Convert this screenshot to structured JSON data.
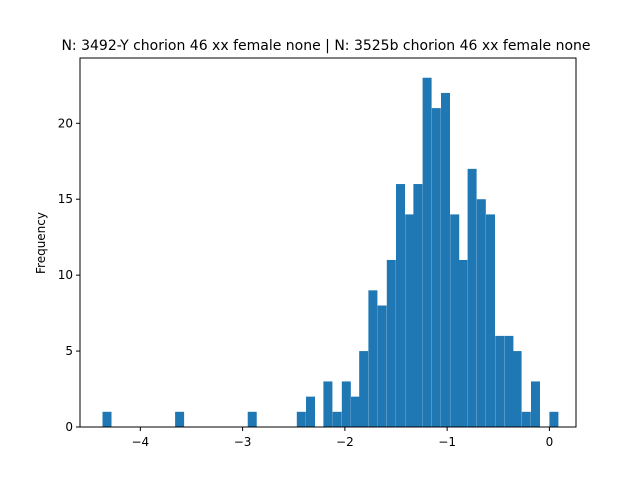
{
  "chart_data": {
    "type": "bar",
    "title": "N: 3492-Y chorion 46 xx female none | N: 3525b chorion 46 xx female none",
    "xlabel": "",
    "ylabel": "Frequency",
    "xlim": [
      -4.59,
      0.26
    ],
    "ylim": [
      0,
      24.3
    ],
    "x_ticks": [
      -4,
      -3,
      -2,
      -1,
      0
    ],
    "x_tick_labels": [
      "−4",
      "−3",
      "−2",
      "−1",
      "0"
    ],
    "y_ticks": [
      0,
      5,
      10,
      15,
      20
    ],
    "y_tick_labels": [
      "0",
      "5",
      "10",
      "15",
      "20"
    ],
    "grid": false,
    "bar_color": "#1f77b4",
    "bin_width": 0.088,
    "bins": [
      {
        "x": -4.37,
        "count": 1
      },
      {
        "x": -3.66,
        "count": 1
      },
      {
        "x": -2.95,
        "count": 1
      },
      {
        "x": -2.47,
        "count": 1
      },
      {
        "x": -2.38,
        "count": 2
      },
      {
        "x": -2.21,
        "count": 3
      },
      {
        "x": -2.12,
        "count": 1
      },
      {
        "x": -2.03,
        "count": 3
      },
      {
        "x": -1.94,
        "count": 2
      },
      {
        "x": -1.86,
        "count": 5
      },
      {
        "x": -1.77,
        "count": 9
      },
      {
        "x": -1.68,
        "count": 8
      },
      {
        "x": -1.59,
        "count": 11
      },
      {
        "x": -1.5,
        "count": 16
      },
      {
        "x": -1.41,
        "count": 14
      },
      {
        "x": -1.33,
        "count": 16
      },
      {
        "x": -1.24,
        "count": 23
      },
      {
        "x": -1.15,
        "count": 21
      },
      {
        "x": -1.06,
        "count": 22
      },
      {
        "x": -0.97,
        "count": 14
      },
      {
        "x": -0.89,
        "count": 11
      },
      {
        "x": -0.8,
        "count": 17
      },
      {
        "x": -0.71,
        "count": 15
      },
      {
        "x": -0.62,
        "count": 14
      },
      {
        "x": -0.53,
        "count": 6
      },
      {
        "x": -0.44,
        "count": 6
      },
      {
        "x": -0.36,
        "count": 5
      },
      {
        "x": -0.27,
        "count": 1
      },
      {
        "x": -0.18,
        "count": 3
      },
      {
        "x": 0.0,
        "count": 1
      }
    ]
  }
}
